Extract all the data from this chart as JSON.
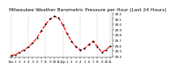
{
  "title": "Milwaukee Weather Barometric Pressure per Hour (Last 24 Hours)",
  "background_color": "#ffffff",
  "line_color": "#ff0000",
  "dot_color": "#000000",
  "grid_color": "#bbbbbb",
  "hours": [
    0,
    1,
    2,
    3,
    4,
    5,
    6,
    7,
    8,
    9,
    10,
    11,
    12,
    13,
    14,
    15,
    16,
    17,
    18,
    19,
    20,
    21,
    22,
    23
  ],
  "pressure": [
    29.42,
    29.43,
    29.48,
    29.52,
    29.58,
    29.65,
    29.75,
    29.88,
    30.0,
    30.1,
    30.15,
    30.12,
    29.98,
    29.82,
    29.68,
    29.58,
    29.52,
    29.55,
    29.62,
    29.68,
    29.58,
    29.48,
    29.52,
    29.6
  ],
  "x_tick_labels": [
    "12a",
    "1",
    "2",
    "3",
    "4",
    "5",
    "6",
    "7",
    "8",
    "9",
    "10",
    "11",
    "12p",
    "1",
    "2",
    "3",
    "4",
    "5",
    "6",
    "7",
    "8",
    "9",
    "10",
    "11"
  ],
  "y_min": 29.38,
  "y_max": 30.22,
  "y_ticks": [
    29.4,
    29.5,
    29.6,
    29.7,
    29.8,
    29.9,
    30.0,
    30.1,
    30.2
  ],
  "title_fontsize": 4.2,
  "tick_fontsize": 3.0,
  "linewidth": 0.9,
  "markersize": 1.2,
  "vgrid_positions": [
    0,
    4,
    8,
    12,
    16,
    20,
    23
  ]
}
